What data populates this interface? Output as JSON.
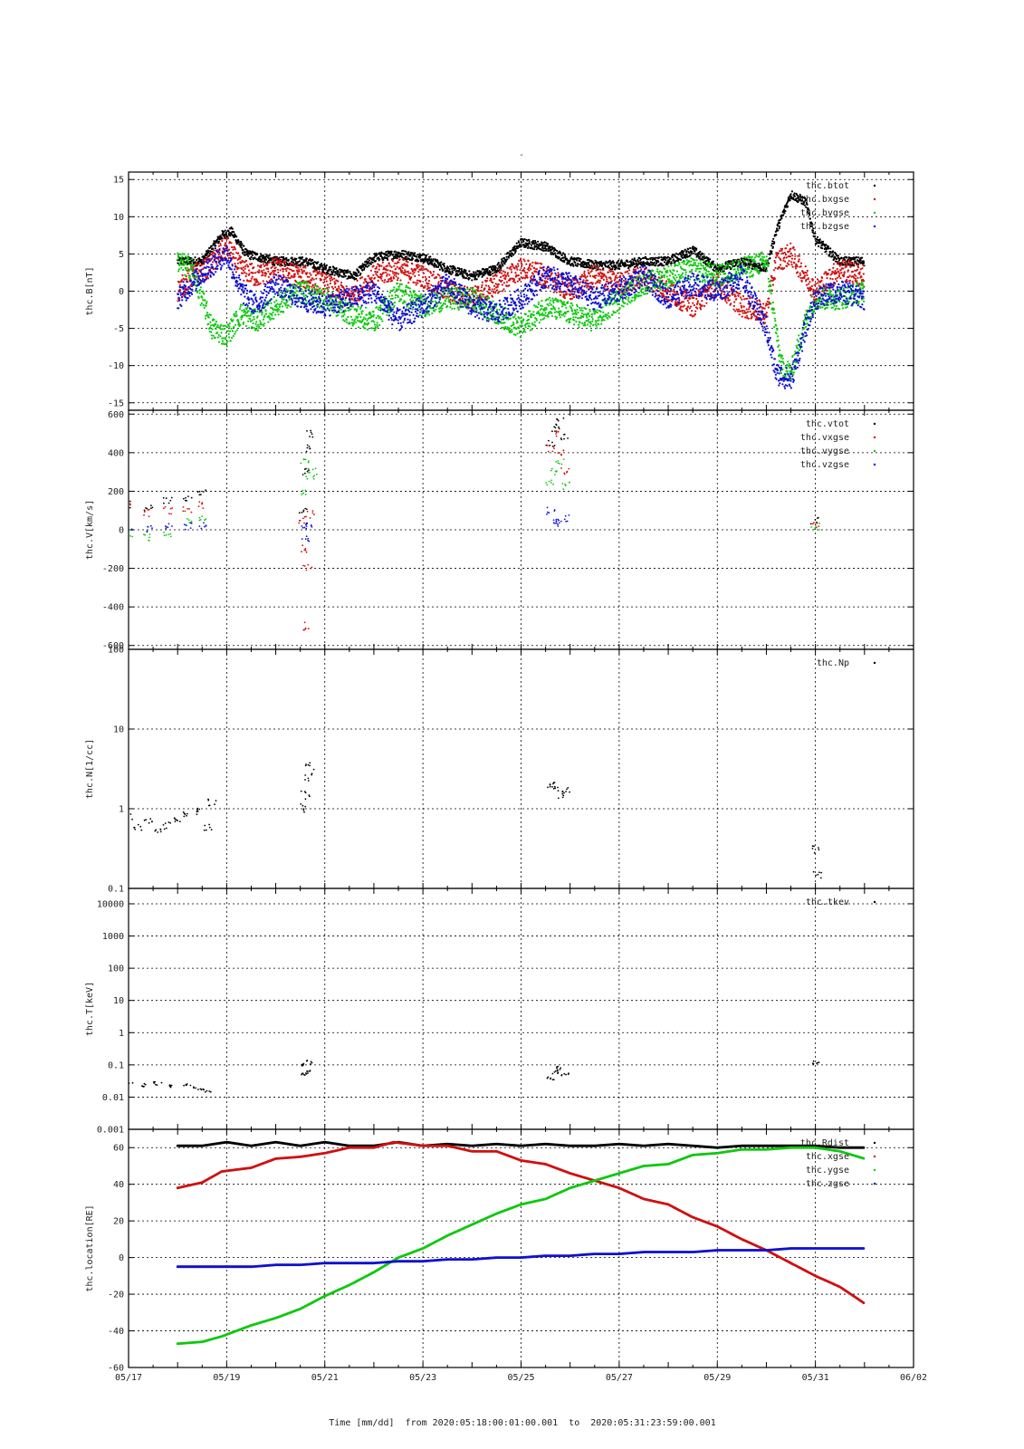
{
  "chart_data": {
    "type": "scatter",
    "title": "-",
    "xlabel": "Time [mm/dd]  from 2020:05:18:00:01:00.001  to  2020:05:31:23:59:00.001",
    "x_range_days": [
      17,
      33
    ],
    "x_ticks": [
      {
        "day": 17,
        "label": "05/17"
      },
      {
        "day": 19,
        "label": "05/19"
      },
      {
        "day": 21,
        "label": "05/21"
      },
      {
        "day": 23,
        "label": "05/23"
      },
      {
        "day": 25,
        "label": "05/25"
      },
      {
        "day": 27,
        "label": "05/27"
      },
      {
        "day": 29,
        "label": "05/29"
      },
      {
        "day": 31,
        "label": "05/31"
      },
      {
        "day": 33,
        "label": "06/02"
      }
    ],
    "panels": [
      {
        "id": "b",
        "ylabel": "thc.B[nT]",
        "scale": "linear",
        "ylim": [
          -16,
          16
        ],
        "yticks": [
          -15,
          -10,
          -5,
          0,
          5,
          10,
          15
        ],
        "ytick_labels": [
          "-15",
          "-10",
          "-5",
          "0",
          "5",
          "10",
          "15"
        ],
        "grid": true,
        "legend": "top-right",
        "series": [
          {
            "name": "thc.btot",
            "color": "#000000",
            "x": [
              18.0,
              18.5,
              18.9,
              19.1,
              19.4,
              20.0,
              20.6,
              21.0,
              21.6,
              22.0,
              22.5,
              23.0,
              23.5,
              24.0,
              24.5,
              25.0,
              25.5,
              26.0,
              26.5,
              27.0,
              27.5,
              28.0,
              28.5,
              29.0,
              29.5,
              30.0,
              30.2,
              30.5,
              30.8,
              31.0,
              31.5,
              32.0
            ],
            "y": [
              4,
              4,
              7.5,
              8,
              5,
              4,
              4,
              3,
              2,
              4.5,
              5,
              4.5,
              3,
              2,
              3,
              6.5,
              6,
              4,
              3.5,
              3.5,
              4,
              4,
              5.5,
              3,
              4,
              3,
              8,
              13,
              12,
              7,
              4,
              4
            ]
          },
          {
            "name": "thc.bxgse",
            "color": "#d01010",
            "x": [
              18.0,
              18.3,
              18.6,
              19.0,
              19.3,
              19.6,
              20.0,
              20.5,
              21.0,
              21.5,
              22.0,
              22.5,
              23.0,
              23.5,
              24.0,
              24.5,
              25.0,
              25.5,
              26.0,
              26.5,
              27.0,
              27.5,
              28.0,
              28.5,
              29.0,
              29.5,
              30.0,
              30.2,
              30.5,
              30.8,
              31.0,
              31.5,
              32.0
            ],
            "y": [
              0,
              2,
              3,
              6,
              3,
              2,
              3,
              2,
              1,
              -1,
              2,
              3,
              2,
              0,
              -1,
              1,
              3,
              2,
              0,
              2,
              1,
              2,
              0,
              -2,
              1,
              -2,
              -3,
              4,
              5,
              2,
              0,
              3,
              2
            ]
          },
          {
            "name": "thc.bygse",
            "color": "#10c810",
            "x": [
              18.0,
              18.3,
              18.7,
              19.0,
              19.3,
              19.6,
              20.0,
              20.5,
              21.0,
              21.5,
              22.0,
              22.5,
              23.0,
              23.5,
              24.0,
              24.5,
              25.0,
              25.5,
              26.0,
              26.5,
              27.0,
              27.5,
              28.0,
              28.5,
              29.0,
              29.5,
              30.0,
              30.3,
              30.5,
              30.8,
              31.0,
              31.5,
              32.0
            ],
            "y": [
              4,
              3,
              -5,
              -6,
              -3,
              -4,
              -2,
              0,
              -1,
              -3,
              -4,
              0,
              -2,
              -1,
              -1,
              -3,
              -5,
              -2,
              -3,
              -4,
              -1,
              1,
              2,
              3,
              2,
              3,
              4,
              -10,
              -11,
              -4,
              -1,
              -1,
              0
            ]
          },
          {
            "name": "thc.bzgse",
            "color": "#1010d0",
            "x": [
              18.0,
              18.3,
              18.6,
              19.0,
              19.3,
              19.6,
              20.0,
              20.5,
              21.0,
              21.5,
              22.0,
              22.5,
              23.0,
              23.5,
              24.0,
              24.5,
              25.0,
              25.5,
              26.0,
              26.5,
              27.0,
              27.5,
              28.0,
              28.5,
              29.0,
              29.5,
              30.0,
              30.2,
              30.5,
              30.8,
              31.0,
              31.5,
              32.0
            ],
            "y": [
              -1,
              1,
              3,
              5,
              0,
              -2,
              1,
              -1,
              -2,
              -1,
              0,
              -4,
              -2,
              1,
              -2,
              -3,
              -1,
              2,
              1,
              -1,
              0,
              2,
              -1,
              1,
              0,
              2,
              -5,
              -11,
              -12,
              -5,
              -1,
              0,
              -1
            ]
          }
        ]
      },
      {
        "id": "v",
        "ylabel": "thc.V[km/s]",
        "scale": "linear",
        "ylim": [
          -620,
          620
        ],
        "yticks": [
          -600,
          -400,
          -200,
          0,
          200,
          400,
          600
        ],
        "ytick_labels": [
          "-600",
          "-400",
          "-200",
          "0",
          "200",
          "400",
          "600"
        ],
        "grid": true,
        "legend": "top-right",
        "series": [
          {
            "name": "thc.vtot",
            "color": "#000000",
            "x": [
              17.0,
              17.4,
              17.8,
              18.2,
              18.5,
              20.55,
              20.6,
              20.65,
              20.7,
              25.6,
              25.7,
              25.8,
              25.9,
              31.0
            ],
            "y": [
              130,
              110,
              150,
              160,
              200,
              100,
              300,
              420,
              500,
              450,
              520,
              560,
              480,
              50
            ]
          },
          {
            "name": "thc.vxgse",
            "color": "#d01010",
            "x": [
              17.0,
              17.4,
              17.8,
              18.2,
              18.5,
              20.55,
              20.6,
              20.65,
              20.7,
              20.6,
              25.6,
              25.7,
              25.8,
              25.9,
              31.0
            ],
            "y": [
              120,
              90,
              100,
              110,
              130,
              50,
              -100,
              -200,
              80,
              -500,
              420,
              500,
              400,
              300,
              30
            ]
          },
          {
            "name": "thc.vygse",
            "color": "#10c810",
            "x": [
              17.0,
              17.4,
              17.8,
              18.2,
              18.5,
              20.55,
              20.6,
              20.7,
              20.75,
              25.6,
              25.7,
              25.8,
              25.9,
              31.0
            ],
            "y": [
              -20,
              -40,
              -30,
              40,
              60,
              200,
              350,
              280,
              300,
              250,
              300,
              360,
              230,
              20
            ]
          },
          {
            "name": "thc.vzgse",
            "color": "#1010d0",
            "x": [
              17.0,
              17.4,
              17.8,
              18.2,
              18.5,
              20.55,
              20.6,
              20.7,
              25.6,
              25.7,
              25.8,
              25.9
            ],
            "y": [
              0,
              5,
              15,
              20,
              25,
              20,
              -40,
              20,
              100,
              50,
              30,
              60
            ]
          }
        ]
      },
      {
        "id": "n",
        "ylabel": "thc.N[1/cc]",
        "scale": "log",
        "ylim": [
          0.1,
          100
        ],
        "yticks": [
          0.1,
          1,
          10,
          100
        ],
        "ytick_labels": [
          "0.1",
          "1",
          "10",
          "100"
        ],
        "grid": true,
        "legend": "top-right",
        "series": [
          {
            "name": "thc.Np",
            "color": "#000000",
            "x": [
              17.0,
              17.2,
              17.4,
              17.6,
              17.8,
              18.0,
              18.2,
              18.4,
              18.6,
              18.7,
              20.55,
              20.6,
              20.65,
              20.7,
              25.6,
              25.7,
              25.8,
              25.9,
              31.0,
              31.05
            ],
            "y": [
              0.8,
              0.6,
              0.7,
              0.5,
              0.6,
              0.7,
              0.8,
              0.9,
              0.6,
              1.2,
              1.0,
              1.5,
              2.5,
              3.5,
              2.0,
              1.8,
              1.5,
              1.7,
              0.3,
              0.15
            ]
          }
        ]
      },
      {
        "id": "t",
        "ylabel": "thc.T[keV]",
        "scale": "log",
        "ylim": [
          0.001,
          30000
        ],
        "yticks": [
          0.001,
          0.01,
          0.1,
          1,
          10,
          100,
          1000,
          10000
        ],
        "ytick_labels": [
          "0.001",
          "0.01",
          "0.1",
          "1",
          "10",
          "100",
          "1000",
          "10000"
        ],
        "grid": true,
        "legend": "top-right",
        "series": [
          {
            "name": "thc.tkev",
            "color": "#000000",
            "x": [
              17.0,
              17.3,
              17.6,
              17.9,
              18.2,
              18.4,
              18.6,
              20.55,
              20.6,
              20.65,
              20.7,
              25.6,
              25.7,
              25.8,
              25.9,
              31.0
            ],
            "y": [
              0.025,
              0.024,
              0.026,
              0.022,
              0.024,
              0.018,
              0.016,
              0.05,
              0.1,
              0.12,
              0.06,
              0.04,
              0.06,
              0.08,
              0.05,
              0.12
            ]
          }
        ]
      },
      {
        "id": "loc",
        "ylabel": "thc.location[RE]",
        "scale": "linear",
        "ylim": [
          -60,
          70
        ],
        "yticks": [
          -60,
          -40,
          -20,
          0,
          20,
          40,
          60
        ],
        "ytick_labels": [
          "-60",
          "-40",
          "-20",
          "0",
          "20",
          "40",
          "60"
        ],
        "grid": true,
        "legend": "top-right",
        "series": [
          {
            "name": "thc.Rdist",
            "color": "#000000",
            "x": [
              18.0,
              18.5,
              19.0,
              19.5,
              20.0,
              20.5,
              21.0,
              21.5,
              22.0,
              22.5,
              23.0,
              23.5,
              24.0,
              24.5,
              25.0,
              25.5,
              26.0,
              26.5,
              27.0,
              27.5,
              28.0,
              28.5,
              29.0,
              29.5,
              30.0,
              30.5,
              31.0,
              31.5,
              32.0
            ],
            "y": [
              61,
              61,
              63,
              61,
              63,
              61,
              63,
              61,
              61,
              63,
              61,
              62,
              61,
              62,
              61,
              62,
              61,
              61,
              62,
              61,
              62,
              61,
              60,
              61,
              61,
              61,
              61,
              60,
              60
            ]
          },
          {
            "name": "thc.xgse",
            "color": "#d01010",
            "x": [
              18.0,
              18.5,
              18.9,
              19.5,
              20.0,
              20.5,
              21.0,
              21.5,
              22.0,
              22.4,
              23.0,
              23.5,
              24.0,
              24.5,
              25.0,
              25.5,
              26.0,
              26.5,
              27.0,
              27.5,
              28.0,
              28.5,
              29.0,
              29.5,
              30.0,
              30.5,
              31.0,
              31.5,
              32.0
            ],
            "y": [
              38,
              41,
              47,
              49,
              54,
              55,
              57,
              60,
              60,
              63,
              61,
              61,
              58,
              58,
              53,
              51,
              46,
              42,
              38,
              32,
              29,
              22,
              17,
              10,
              4,
              -3,
              -10,
              -16,
              -25
            ]
          },
          {
            "name": "thc.ygse",
            "color": "#10c810",
            "x": [
              18.0,
              18.5,
              18.9,
              19.5,
              20.0,
              20.5,
              21.0,
              21.5,
              22.0,
              22.5,
              23.0,
              23.5,
              24.0,
              24.5,
              25.0,
              25.5,
              26.0,
              26.5,
              27.0,
              27.5,
              28.0,
              28.5,
              29.0,
              29.5,
              30.0,
              30.5,
              31.0,
              31.5,
              32.0
            ],
            "y": [
              -47,
              -46,
              -43,
              -37,
              -33,
              -28,
              -21,
              -15,
              -8,
              0,
              5,
              12,
              18,
              24,
              29,
              32,
              38,
              42,
              46,
              50,
              51,
              56,
              57,
              59,
              59,
              60,
              60,
              58,
              54
            ]
          },
          {
            "name": "thc.zgse",
            "color": "#1010d0",
            "x": [
              18.0,
              18.5,
              19.0,
              19.5,
              20.0,
              20.5,
              21.0,
              21.5,
              22.0,
              22.5,
              23.0,
              23.5,
              24.0,
              24.5,
              25.0,
              25.5,
              26.0,
              26.5,
              27.0,
              27.5,
              28.0,
              28.5,
              29.0,
              29.5,
              30.0,
              30.5,
              31.0,
              31.5,
              32.0
            ],
            "y": [
              -5,
              -5,
              -5,
              -5,
              -4,
              -4,
              -3,
              -3,
              -3,
              -2,
              -2,
              -1,
              -1,
              0,
              0,
              1,
              1,
              2,
              2,
              3,
              3,
              3,
              4,
              4,
              4,
              5,
              5,
              5,
              5
            ]
          }
        ]
      }
    ]
  }
}
